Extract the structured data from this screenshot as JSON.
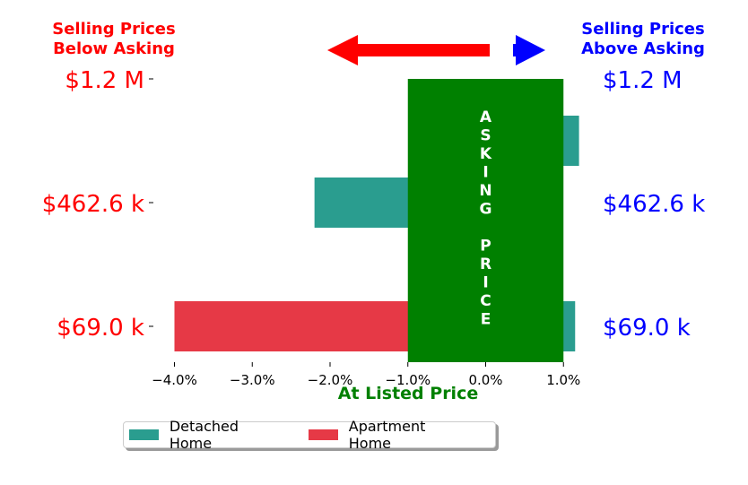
{
  "header": {
    "left_title": [
      "Selling Prices",
      "Below Asking"
    ],
    "right_title": [
      "Selling Prices",
      "Above Asking"
    ],
    "left_color": "#ff0000",
    "right_color": "#0000ff"
  },
  "center_band": {
    "letters": [
      "A",
      "S",
      "K",
      "I",
      "N",
      "G",
      "",
      "P",
      "R",
      "I",
      "C",
      "E"
    ],
    "color": "#008000"
  },
  "chart_data": {
    "type": "bar",
    "orientation": "horizontal",
    "xlabel": "At Listed Price",
    "xlabel_color": "#008000",
    "x_ticks": [
      -4.0,
      -3.0,
      -2.0,
      -1.0,
      0.0,
      1.0
    ],
    "x_tick_labels": [
      "−4.0%",
      "−3.0%",
      "−2.0%",
      "−1.0%",
      "0.0%",
      "1.0%"
    ],
    "xlim": [
      -4.35,
      1.18
    ],
    "asking_band": [
      -1.0,
      1.0
    ],
    "categories": [
      "$1.2 M",
      "$462.6 k",
      "$69.0 k"
    ],
    "left_labels": [
      "$1.2 M",
      "$462.6 k",
      "$69.0 k"
    ],
    "right_labels": [
      "$1.2 M",
      "$462.6 k",
      "$69.0 k"
    ],
    "series": [
      {
        "name": "Detached Home",
        "color": "#2a9d8f",
        "values": [
          1.2,
          -2.2,
          1.15
        ]
      },
      {
        "name": "Apartment Home",
        "color": "#e63946",
        "values": [
          null,
          null,
          -4.0
        ]
      }
    ],
    "legend_position": "bottom"
  }
}
